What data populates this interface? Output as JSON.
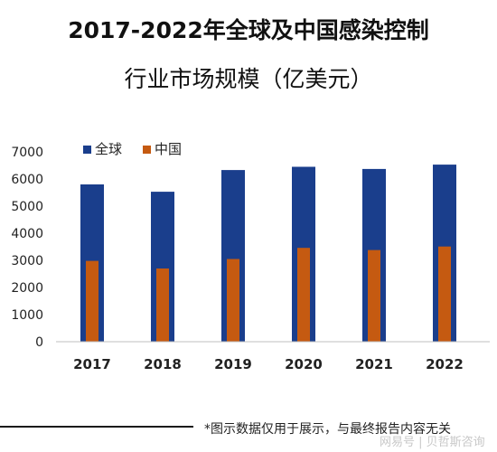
{
  "title_line1": "2017-2022年全球及中国感染控制",
  "title_line2": "行业市场规模（亿美元）",
  "footnote": "*图示数据仅用于展示，与最终报告内容无关",
  "source_mark": "网易号 | 贝哲斯咨询",
  "colors": {
    "global": "#1a3e8c",
    "china": "#c55a11",
    "axis": "#bfbfbf"
  },
  "chart_data": {
    "type": "bar",
    "categories": [
      "2017",
      "2018",
      "2019",
      "2020",
      "2021",
      "2022"
    ],
    "series": [
      {
        "name": "全球",
        "values": [
          5800,
          5530,
          6330,
          6450,
          6370,
          6530
        ]
      },
      {
        "name": "中国",
        "values": [
          2980,
          2700,
          3050,
          3460,
          3380,
          3510
        ]
      }
    ],
    "ylim": [
      0,
      7000
    ],
    "yticks": [
      0,
      1000,
      2000,
      3000,
      4000,
      5000,
      6000,
      7000
    ],
    "legend_position": "top-left",
    "grid": false
  }
}
